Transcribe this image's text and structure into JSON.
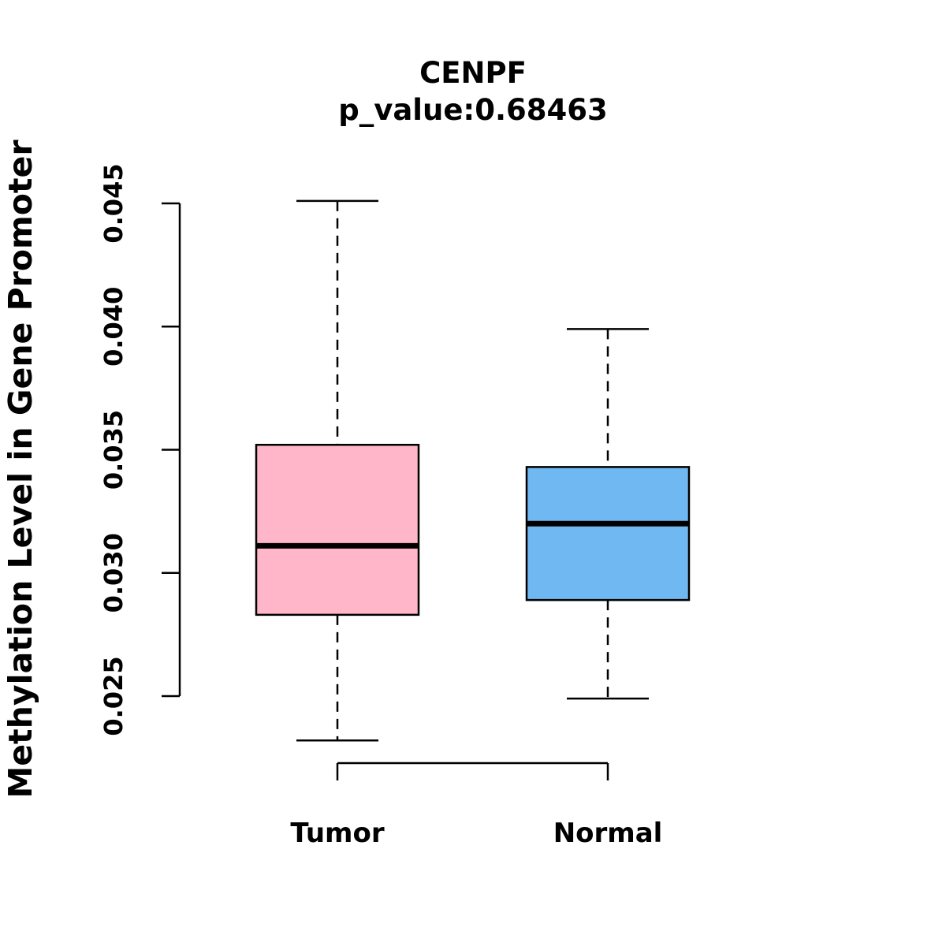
{
  "chart_data": {
    "type": "boxplot",
    "title": "CENPF",
    "subtitle": "p_value:0.68463",
    "ylabel": "Methylation Level in Gene Promoter",
    "categories": [
      "Tumor",
      "Normal"
    ],
    "series": [
      {
        "name": "Tumor",
        "low": 0.0232,
        "q1": 0.0283,
        "median": 0.0311,
        "q3": 0.0352,
        "high": 0.0451,
        "color": "#FFB6C8"
      },
      {
        "name": "Normal",
        "low": 0.0249,
        "q1": 0.0289,
        "median": 0.032,
        "q3": 0.0343,
        "high": 0.0399,
        "color": "#6FB8F2"
      }
    ],
    "yticks": [
      0.025,
      0.03,
      0.035,
      0.04,
      0.045
    ],
    "ylim": [
      0.025,
      0.045
    ],
    "grid": false,
    "legend": "none",
    "line_color": "#000000"
  }
}
